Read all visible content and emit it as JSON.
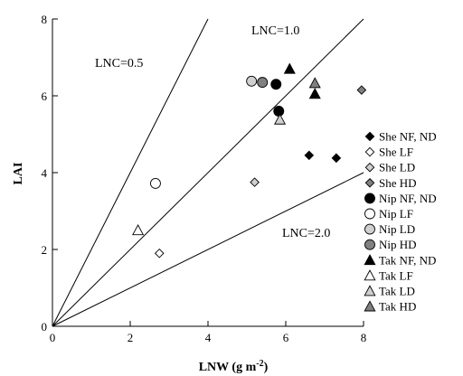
{
  "chart_data": {
    "type": "scatter",
    "xlabel": "LNW (g m",
    "xlabel_sup": "-2",
    "xlabel_end": ")",
    "ylabel": "LAI",
    "xlim": [
      0,
      8
    ],
    "ylim": [
      0,
      8
    ],
    "xticks": [
      0,
      2,
      4,
      6,
      8
    ],
    "yticks": [
      0,
      2,
      4,
      6,
      8
    ],
    "grid": false,
    "legend_position": "right",
    "reference_lines": [
      {
        "label": "LNC=0.5",
        "slope": 2.0
      },
      {
        "label": "LNC=1.0",
        "slope": 1.0
      },
      {
        "label": "LNC=2.0",
        "slope": 0.5
      }
    ],
    "series": [
      {
        "name": "She NF, ND",
        "marker": "diamond",
        "fill": "#000000",
        "points": [
          [
            6.6,
            4.45
          ],
          [
            7.3,
            4.38
          ]
        ]
      },
      {
        "name": "She LF",
        "marker": "diamond",
        "fill": "#ffffff",
        "points": [
          [
            2.75,
            1.9
          ]
        ]
      },
      {
        "name": "She LD",
        "marker": "diamond",
        "fill": "#d0d0d0",
        "points": [
          [
            5.2,
            3.75
          ]
        ]
      },
      {
        "name": "She HD",
        "marker": "diamond",
        "fill": "#808080",
        "points": [
          [
            7.95,
            6.15
          ]
        ]
      },
      {
        "name": "Nip NF, ND",
        "marker": "circle",
        "fill": "#000000",
        "points": [
          [
            5.75,
            6.3
          ],
          [
            5.82,
            5.6
          ]
        ]
      },
      {
        "name": "Nip LF",
        "marker": "circle",
        "fill": "#ffffff",
        "points": [
          [
            2.65,
            3.72
          ]
        ]
      },
      {
        "name": "Nip LD",
        "marker": "circle",
        "fill": "#d0d0d0",
        "points": [
          [
            5.12,
            6.38
          ]
        ]
      },
      {
        "name": "Nip HD",
        "marker": "circle",
        "fill": "#808080",
        "points": [
          [
            5.4,
            6.35
          ]
        ]
      },
      {
        "name": "Tak NF, ND",
        "marker": "triangle",
        "fill": "#000000",
        "points": [
          [
            6.1,
            6.7
          ],
          [
            6.75,
            6.05
          ]
        ]
      },
      {
        "name": "Tak LF",
        "marker": "triangle",
        "fill": "#ffffff",
        "points": [
          [
            2.2,
            2.5
          ]
        ]
      },
      {
        "name": "Tak LD",
        "marker": "triangle",
        "fill": "#d0d0d0",
        "points": [
          [
            5.85,
            5.38
          ]
        ]
      },
      {
        "name": "Tak HD",
        "marker": "triangle",
        "fill": "#808080",
        "points": [
          [
            6.75,
            6.33
          ]
        ]
      }
    ]
  }
}
